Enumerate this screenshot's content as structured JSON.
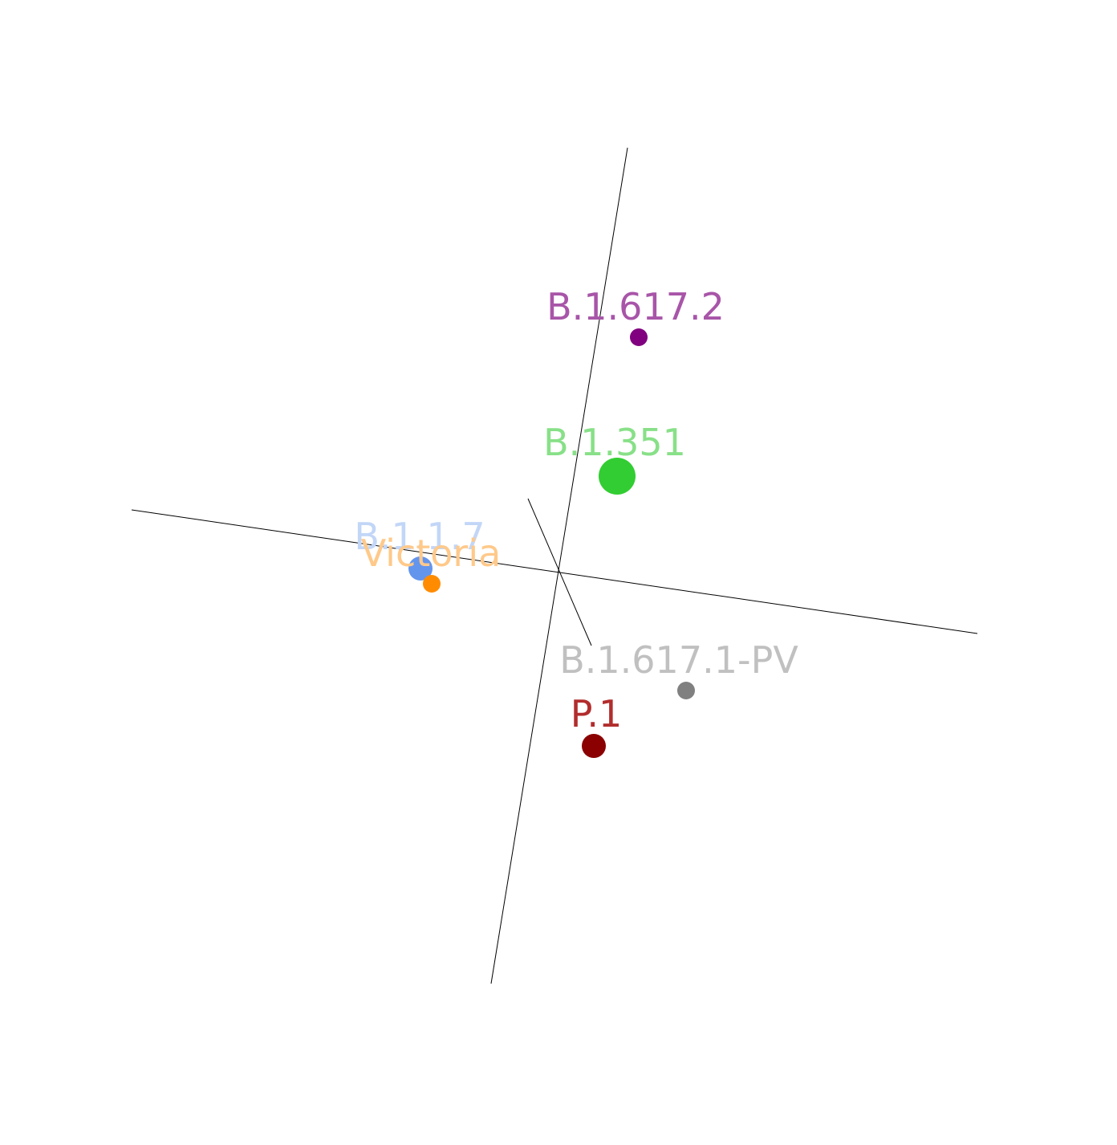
{
  "chart_data": {
    "type": "scatter",
    "projection": "3d",
    "title": "",
    "xlabel": "",
    "ylabel": "",
    "zlabel": "",
    "grid": false,
    "legend": "none",
    "points": [
      {
        "label": "B.1.617.2",
        "color": "#800080",
        "label_color": "#a855a8",
        "size": "small"
      },
      {
        "label": "B.1.351",
        "color": "#32cd32",
        "label_color": "#88e088",
        "size": "large"
      },
      {
        "label": "B.1.1.7",
        "color": "#6495ed",
        "label_color": "#c2d6f7",
        "size": "medium"
      },
      {
        "label": "Victoria",
        "color": "#ff8c00",
        "label_color": "#ffc98a",
        "size": "small"
      },
      {
        "label": "B.1.617.1-PV",
        "color": "#808080",
        "label_color": "#c0c0c0",
        "size": "small"
      },
      {
        "label": "P.1",
        "color": "#8b0000",
        "label_color": "#b22d2d",
        "size": "medium"
      }
    ]
  }
}
